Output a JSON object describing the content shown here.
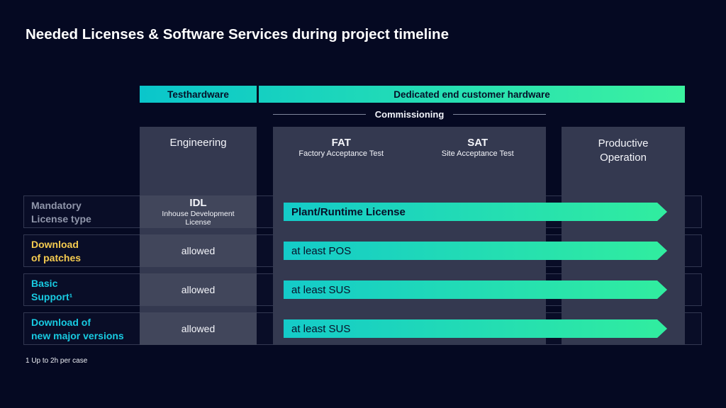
{
  "title": "Needed Licenses & Software Services during project timeline",
  "header": {
    "segments": [
      {
        "label": "Testhardware"
      },
      {
        "label": "Dedicated end customer hardware"
      }
    ],
    "phase_label": "Commissioning"
  },
  "columns": {
    "engineering": {
      "label": "Engineering"
    },
    "fat": {
      "title": "FAT",
      "subtitle": "Factory Acceptance Test"
    },
    "sat": {
      "title": "SAT",
      "subtitle": "Site Acceptance Test"
    },
    "productive": {
      "label": "Productive\nOperation"
    }
  },
  "rows": [
    {
      "label": "Mandatory\nLicense type",
      "label_color": "#9096aa",
      "engineering_title": "IDL",
      "engineering_subtitle": "Inhouse Development\nLicense",
      "arrow_text": "Plant/Runtime License"
    },
    {
      "label": "Download\nof patches",
      "label_color": "#f5cb50",
      "engineering_value": "allowed",
      "arrow_text": "at least POS"
    },
    {
      "label": "Basic\nSupport¹",
      "label_color": "#18cbe2",
      "engineering_value": "allowed",
      "arrow_text": "at least SUS"
    },
    {
      "label": "Download of\nnew major versions",
      "label_color": "#18cbe2",
      "engineering_value": "allowed",
      "arrow_text": "at least SUS"
    }
  ],
  "footnote": "1 Up to 2h per case",
  "colors": {
    "background": "#050922",
    "panel": "#343950",
    "gradient_start": "#0ac6cb",
    "gradient_end": "#3bf2a0",
    "accent_yellow": "#f5cb50",
    "accent_cyan": "#18cbe2"
  }
}
